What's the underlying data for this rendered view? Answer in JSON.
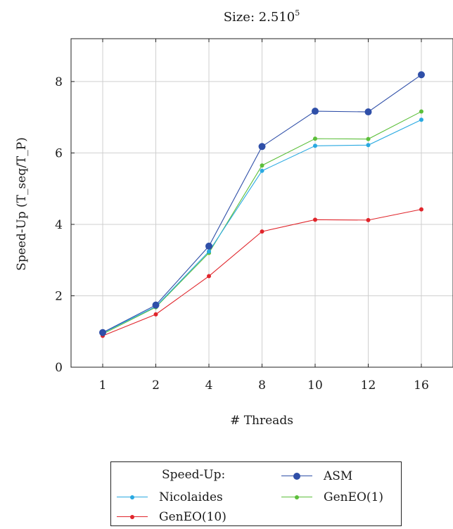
{
  "chart_data": {
    "type": "line",
    "title": "Size: 2.510",
    "title_sup": "5",
    "xlabel": "# Threads",
    "ylabel": "Speed-Up (T_seq/T_P)",
    "categories": [
      "1",
      "2",
      "4",
      "8",
      "10",
      "12",
      "16"
    ],
    "ylim": [
      0,
      9.2
    ],
    "yticks": [
      0,
      2,
      4,
      6,
      8
    ],
    "grid": true,
    "legend_title": "Speed-Up:",
    "legend_position": "below",
    "series": [
      {
        "name": "ASM",
        "color": "#2f4fa8",
        "marker_size": 5,
        "values": [
          0.97,
          1.74,
          3.39,
          6.18,
          7.17,
          7.15,
          8.19
        ]
      },
      {
        "name": "Nicolaides",
        "color": "#29a9e1",
        "marker_size": 3,
        "values": [
          0.96,
          1.7,
          3.24,
          5.5,
          6.2,
          6.22,
          6.93
        ]
      },
      {
        "name": "GenEO(1)",
        "color": "#5cbf3a",
        "marker_size": 3,
        "values": [
          0.93,
          1.68,
          3.2,
          5.65,
          6.4,
          6.39,
          7.16
        ]
      },
      {
        "name": "GenEO(10)",
        "color": "#e0252b",
        "marker_size": 3,
        "values": [
          0.88,
          1.48,
          2.55,
          3.8,
          4.13,
          4.12,
          4.42
        ]
      }
    ]
  }
}
